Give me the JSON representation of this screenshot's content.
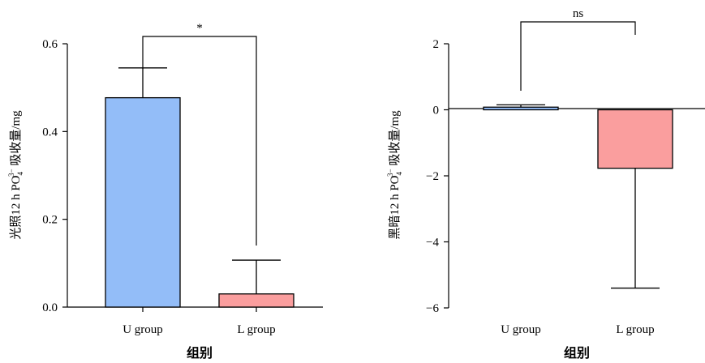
{
  "chart_data": [
    {
      "type": "bar",
      "categories": [
        "U group",
        "L group"
      ],
      "values": [
        0.477,
        0.03
      ],
      "error_upper": [
        0.068,
        0.077
      ],
      "colors": [
        "#93bdf8",
        "#fa9e9e"
      ],
      "xlabel": "组别",
      "ylabel_pre": "光照12 h PO",
      "ylabel_sub": "4",
      "ylabel_sup": "3−",
      "ylabel_post": " 吸收量/mg",
      "ylim": [
        0,
        0.6
      ],
      "yticks": [
        0,
        0.2,
        0.4,
        0.6
      ],
      "ytick_labels": [
        "0.0",
        "0.2",
        "0.4",
        "0.6"
      ],
      "significance": "*"
    },
    {
      "type": "bar",
      "categories": [
        "U group",
        "L group"
      ],
      "values": [
        0.08,
        -1.77
      ],
      "error_upper": [
        0.07,
        0
      ],
      "error_lower": [
        0,
        3.63
      ],
      "colors": [
        "#93bdf8",
        "#fa9e9e"
      ],
      "xlabel": "组别",
      "ylabel_pre": "黑暗12 h PO",
      "ylabel_sub": "4",
      "ylabel_sup": "3−",
      "ylabel_post": " 吸收量/mg",
      "ylim": [
        -6,
        2
      ],
      "yticks": [
        -6,
        -4,
        -2,
        0,
        2
      ],
      "ytick_labels": [
        "−6",
        "−4",
        "−2",
        "0",
        "2"
      ],
      "significance": "ns"
    }
  ]
}
